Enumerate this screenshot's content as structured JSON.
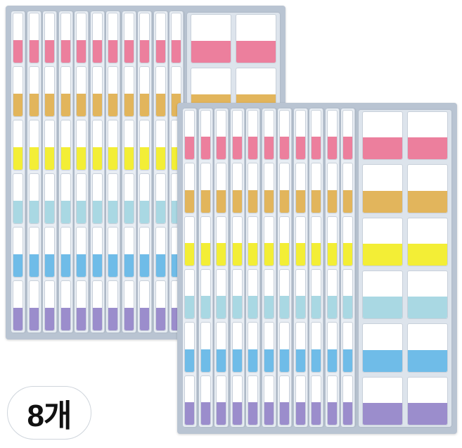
{
  "badge": {
    "label": "8개"
  },
  "colors": {
    "pink": "#ec7f9d",
    "orange": "#e2b55c",
    "yellow": "#f3ee36",
    "aqua": "#a9d8e3",
    "blue": "#6fbce8",
    "purple": "#9b8dcc"
  },
  "color_order": [
    "pink",
    "orange",
    "yellow",
    "aqua",
    "blue",
    "purple"
  ],
  "packs": [
    {
      "name": "back-pack",
      "strip_count": 11
    },
    {
      "name": "front-pack",
      "strip_count": 11
    }
  ]
}
